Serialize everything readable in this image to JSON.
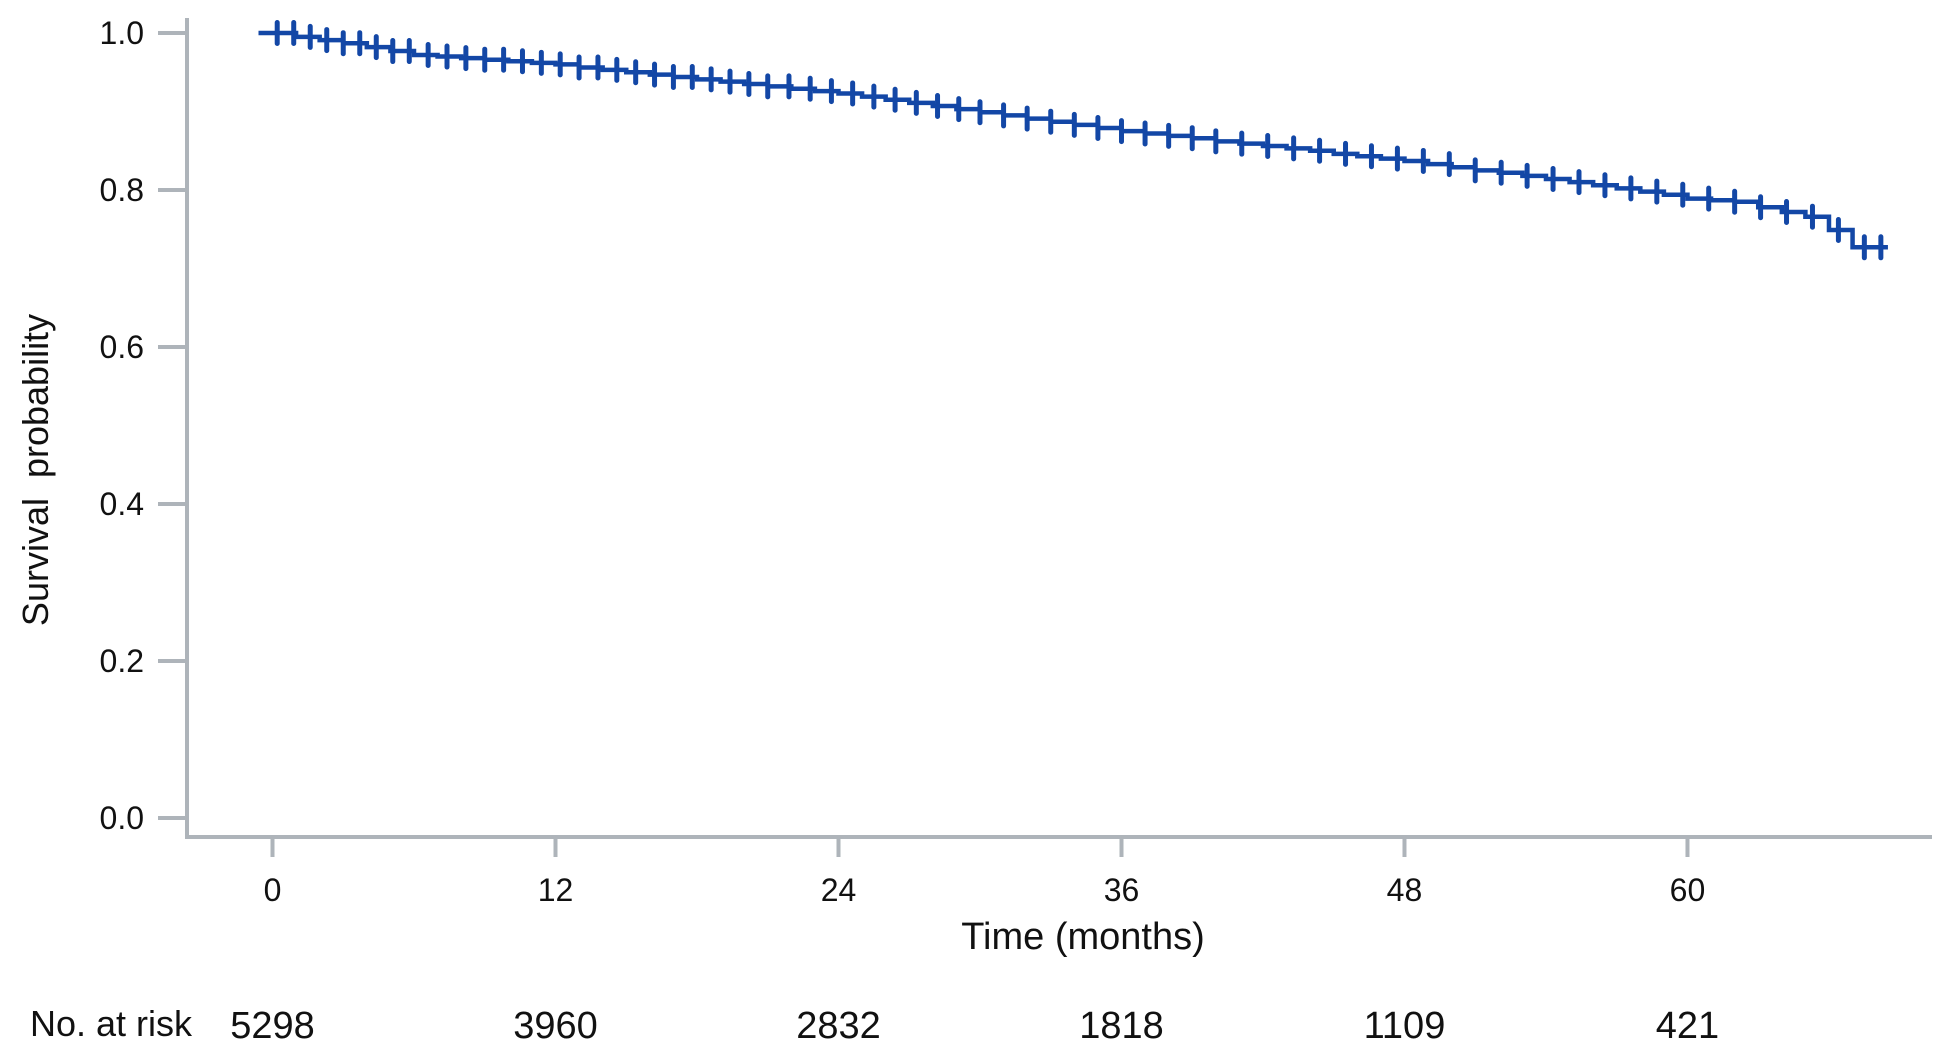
{
  "chart_data": {
    "type": "line",
    "variant": "kaplan_meier_step_curve_with_censor_marks",
    "title": "",
    "xlabel": "Time (months)",
    "ylabel": "Survival  probability",
    "x_ticks": [
      {
        "value": 0,
        "label": "0"
      },
      {
        "value": 12,
        "label": "12"
      },
      {
        "value": 24,
        "label": "24"
      },
      {
        "value": 36,
        "label": "36"
      },
      {
        "value": 48,
        "label": "48"
      },
      {
        "value": 60,
        "label": "60"
      }
    ],
    "y_ticks": [
      {
        "value": 1.0,
        "label": "1.0"
      },
      {
        "value": 0.8,
        "label": "0.8"
      },
      {
        "value": 0.6,
        "label": "0.6"
      },
      {
        "value": 0.4,
        "label": "0.4"
      },
      {
        "value": 0.2,
        "label": "0.2"
      },
      {
        "value": 0.0,
        "label": "0.0"
      }
    ],
    "xlim": [
      0,
      68.5
    ],
    "ylim": [
      0.0,
      1.0
    ],
    "grid": false,
    "legend": "none",
    "colors": {
      "curve": "#1347a6",
      "axis": "#aeb4ba",
      "text": "#111111"
    },
    "series": [
      {
        "name": "Survival probability",
        "points": [
          [
            0,
            1.0
          ],
          [
            1,
            0.995
          ],
          [
            2,
            0.991
          ],
          [
            3,
            0.987
          ],
          [
            4,
            0.982
          ],
          [
            5,
            0.977
          ],
          [
            6,
            0.972
          ],
          [
            7,
            0.97
          ],
          [
            8,
            0.968
          ],
          [
            9,
            0.966
          ],
          [
            10,
            0.964
          ],
          [
            11,
            0.962
          ],
          [
            12,
            0.96
          ],
          [
            13,
            0.956
          ],
          [
            14,
            0.953
          ],
          [
            15,
            0.95
          ],
          [
            16,
            0.947
          ],
          [
            17,
            0.944
          ],
          [
            18,
            0.941
          ],
          [
            19,
            0.938
          ],
          [
            20,
            0.935
          ],
          [
            21,
            0.932
          ],
          [
            22,
            0.929
          ],
          [
            23,
            0.926
          ],
          [
            24,
            0.923
          ],
          [
            25,
            0.919
          ],
          [
            26,
            0.915
          ],
          [
            27,
            0.911
          ],
          [
            28,
            0.907
          ],
          [
            29,
            0.903
          ],
          [
            30,
            0.899
          ],
          [
            31,
            0.895
          ],
          [
            32,
            0.891
          ],
          [
            33,
            0.887
          ],
          [
            34,
            0.883
          ],
          [
            35,
            0.879
          ],
          [
            36,
            0.875
          ],
          [
            37,
            0.872
          ],
          [
            38,
            0.869
          ],
          [
            39,
            0.866
          ],
          [
            40,
            0.862
          ],
          [
            41,
            0.859
          ],
          [
            42,
            0.856
          ],
          [
            43,
            0.853
          ],
          [
            44,
            0.85
          ],
          [
            45,
            0.846
          ],
          [
            46,
            0.843
          ],
          [
            47,
            0.84
          ],
          [
            48,
            0.837
          ],
          [
            49,
            0.833
          ],
          [
            50,
            0.829
          ],
          [
            51,
            0.825
          ],
          [
            52,
            0.822
          ],
          [
            53,
            0.818
          ],
          [
            54,
            0.814
          ],
          [
            55,
            0.81
          ],
          [
            56,
            0.806
          ],
          [
            57,
            0.802
          ],
          [
            58,
            0.798
          ],
          [
            59,
            0.794
          ],
          [
            60,
            0.789
          ],
          [
            61,
            0.787
          ],
          [
            62,
            0.785
          ],
          [
            63,
            0.778
          ],
          [
            64,
            0.772
          ],
          [
            65,
            0.766
          ],
          [
            66,
            0.749
          ],
          [
            67,
            0.727
          ],
          [
            68.5,
            0.727
          ]
        ]
      }
    ],
    "censor_times": [
      0.2,
      0.9,
      1.6,
      2.3,
      3.0,
      3.7,
      4.4,
      5.1,
      5.8,
      6.6,
      7.4,
      8.2,
      9.0,
      9.8,
      10.6,
      11.4,
      12.2,
      13.0,
      13.8,
      14.6,
      15.4,
      16.2,
      17.0,
      17.8,
      18.6,
      19.4,
      20.2,
      21.0,
      21.9,
      22.8,
      23.7,
      24.6,
      25.5,
      26.4,
      27.3,
      28.2,
      29.1,
      30.0,
      31.0,
      32.0,
      33.0,
      34.0,
      35.0,
      36.0,
      37.0,
      38.0,
      39.0,
      40.0,
      41.1,
      42.2,
      43.3,
      44.4,
      45.5,
      46.6,
      47.7,
      48.8,
      49.9,
      51.0,
      52.1,
      53.2,
      54.3,
      55.4,
      56.5,
      57.6,
      58.7,
      59.8,
      60.9,
      62.0,
      63.1,
      64.2,
      65.3,
      66.4,
      67.5,
      68.2
    ]
  },
  "risk_table": {
    "label": "No. at risk",
    "times": [
      0,
      12,
      24,
      36,
      48,
      60
    ],
    "counts": [
      "5298",
      "3960",
      "2832",
      "1818",
      "1109",
      "421"
    ]
  }
}
